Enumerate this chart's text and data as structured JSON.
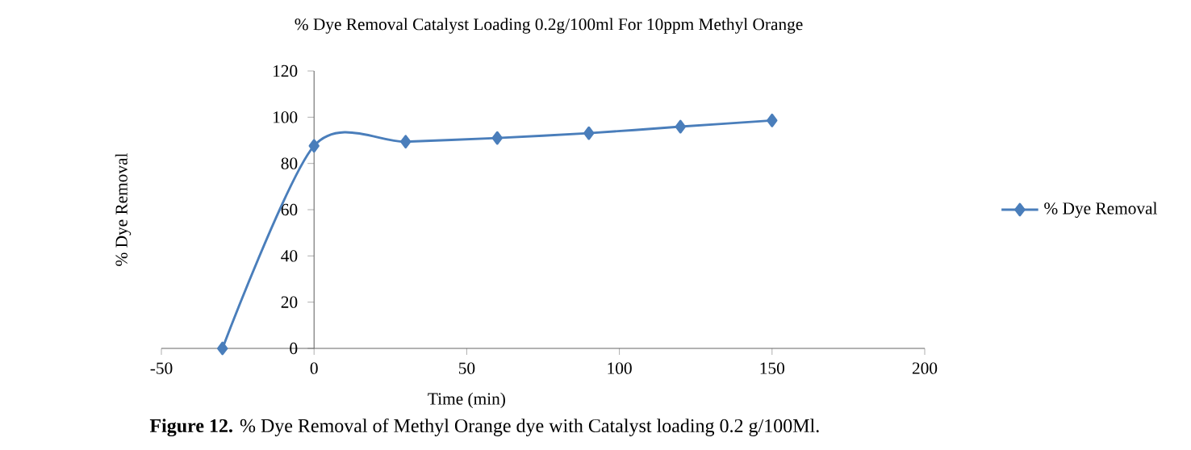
{
  "chart_data": {
    "type": "line",
    "title": "% Dye Removal  Catalyst Loading 0.2g/100ml For 10ppm Methyl Orange",
    "xlabel": "Time (min)",
    "ylabel": "% Dye Removal",
    "annotations": [
      "**Figure 12.** % Dye Removal of Methyl Orange dye with Catalyst loading 0.2 g/100Ml."
    ],
    "x": [
      -30,
      0,
      30,
      60,
      90,
      120,
      150
    ],
    "series": [
      {
        "name": "% Dye Removal",
        "color": "#4a7ebb",
        "values": [
          0,
          87.6,
          89.4,
          91,
          93.1,
          95.9,
          98.6
        ]
      }
    ],
    "xlim": [
      -50,
      200
    ],
    "xticks": [
      -50,
      0,
      50,
      100,
      150,
      200
    ],
    "ylim": [
      0,
      120
    ],
    "yticks": [
      0,
      20,
      40,
      60,
      80,
      100,
      120
    ],
    "grid": false,
    "legend": "right",
    "marker": "diamond",
    "line_style": "solid"
  }
}
